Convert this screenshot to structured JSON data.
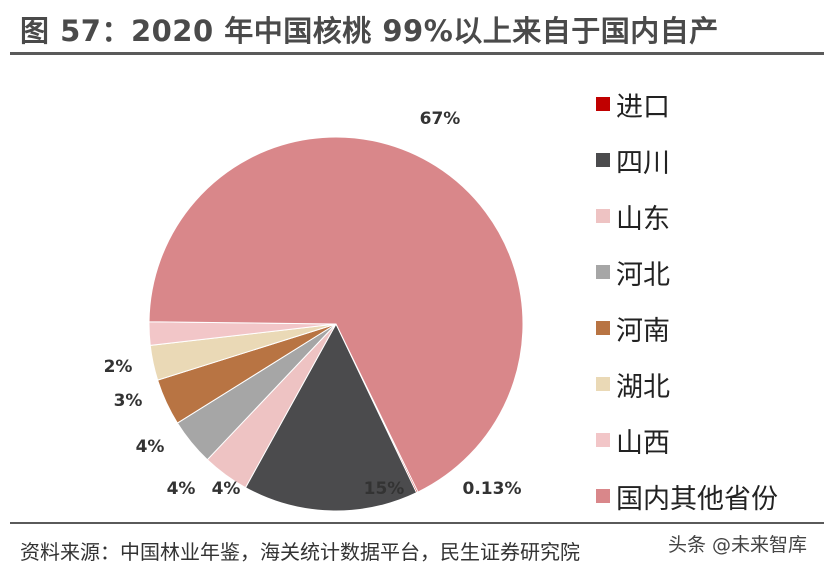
{
  "header": {
    "title": "图 57：2020 年中国核桃 99%以上来自于国内自产"
  },
  "footer": {
    "source": "资料来源：中国林业年鉴，海关统计数据平台，民生证券研究院",
    "watermark": "头条 @未来智库"
  },
  "chart_data": {
    "type": "pie",
    "categories": [
      "进口",
      "四川",
      "山东",
      "河北",
      "河南",
      "湖北",
      "山西",
      "国内其他省份"
    ],
    "values": [
      0.13,
      15,
      4,
      4,
      4,
      3,
      2,
      67
    ],
    "labels": [
      "0.13%",
      "15%",
      "4%",
      "4%",
      "4%",
      "3%",
      "2%",
      "67%"
    ],
    "colors": [
      "#c00000",
      "#4b4b4d",
      "#eec3c3",
      "#a6a6a6",
      "#b87443",
      "#ead9b6",
      "#f2c6c8",
      "#d9878a"
    ],
    "legend_position": "right"
  }
}
